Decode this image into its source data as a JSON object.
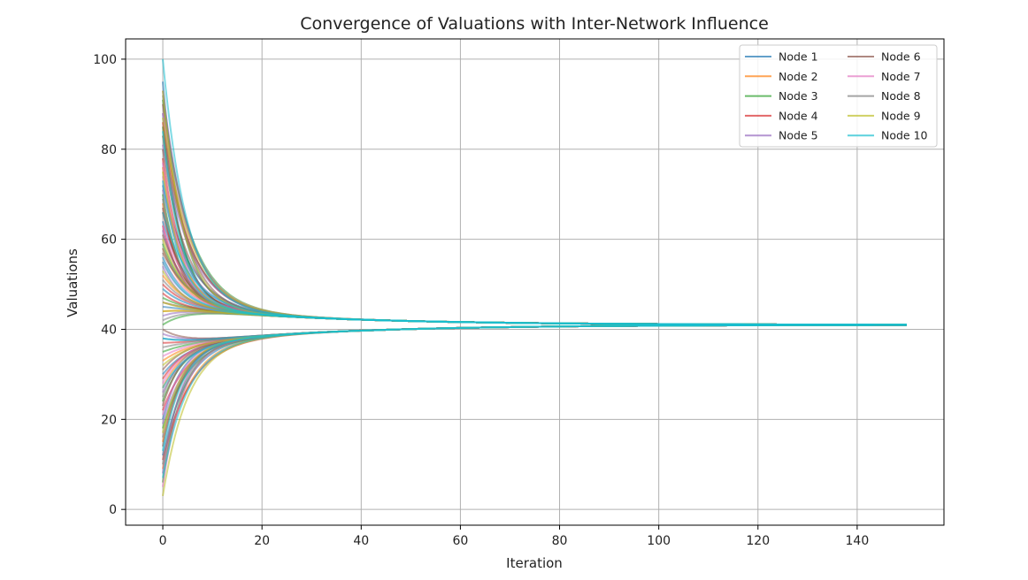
{
  "chart_data": {
    "type": "line",
    "title": "Convergence of Valuations with Inter-Network Influence",
    "xlabel": "Iteration",
    "ylabel": "Valuations",
    "xlim": [
      -7.5,
      157.5
    ],
    "ylim": [
      -3.5,
      104.5
    ],
    "xticks": [
      0,
      20,
      40,
      60,
      80,
      100,
      120,
      140
    ],
    "yticks": [
      0,
      20,
      40,
      60,
      80,
      100
    ],
    "grid": true,
    "legend_position": "top-right",
    "legend_columns": 2,
    "iterations": [
      0,
      150
    ],
    "consensus_value": 41,
    "upper_cluster_peak": 45,
    "lower_cluster_trough": 36.5,
    "series": [
      {
        "name": "Node 1",
        "color": "#1f77b4",
        "initial_values": [
          72,
          12,
          45,
          88,
          30,
          55,
          20,
          64,
          38,
          95
        ]
      },
      {
        "name": "Node 2",
        "color": "#ff7f0e",
        "initial_values": [
          15,
          83,
          52,
          27,
          68,
          9,
          44,
          76,
          33,
          58
        ]
      },
      {
        "name": "Node 3",
        "color": "#2ca02c",
        "initial_values": [
          41,
          6,
          91,
          59,
          24,
          70,
          18,
          47,
          85,
          35
        ]
      },
      {
        "name": "Node 4",
        "color": "#d62728",
        "initial_values": [
          86,
          29,
          63,
          11,
          50,
          78,
          37,
          22,
          66,
          48
        ]
      },
      {
        "name": "Node 5",
        "color": "#9467bd",
        "initial_values": [
          54,
          93,
          19,
          43,
          81,
          26,
          62,
          8,
          71,
          39
        ]
      },
      {
        "name": "Node 6",
        "color": "#8c564b",
        "initial_values": [
          31,
          67,
          46,
          90,
          14,
          57,
          80,
          40,
          23,
          61
        ]
      },
      {
        "name": "Node 7",
        "color": "#e377c2",
        "initial_values": [
          63,
          21,
          77,
          34,
          49,
          5,
          88,
          56,
          28,
          74
        ]
      },
      {
        "name": "Node 8",
        "color": "#7f7f7f",
        "initial_values": [
          25,
          58,
          36,
          69,
          92,
          42,
          16,
          83,
          51,
          10
        ]
      },
      {
        "name": "Node 9",
        "color": "#bcbd22",
        "initial_values": [
          93,
          46,
          3,
          53,
          75,
          32,
          60,
          17,
          87,
          44
        ]
      },
      {
        "name": "Node 10",
        "color": "#17becf",
        "initial_values": [
          100,
          38,
          84,
          7,
          56,
          73,
          27,
          49,
          13,
          66
        ]
      }
    ]
  }
}
